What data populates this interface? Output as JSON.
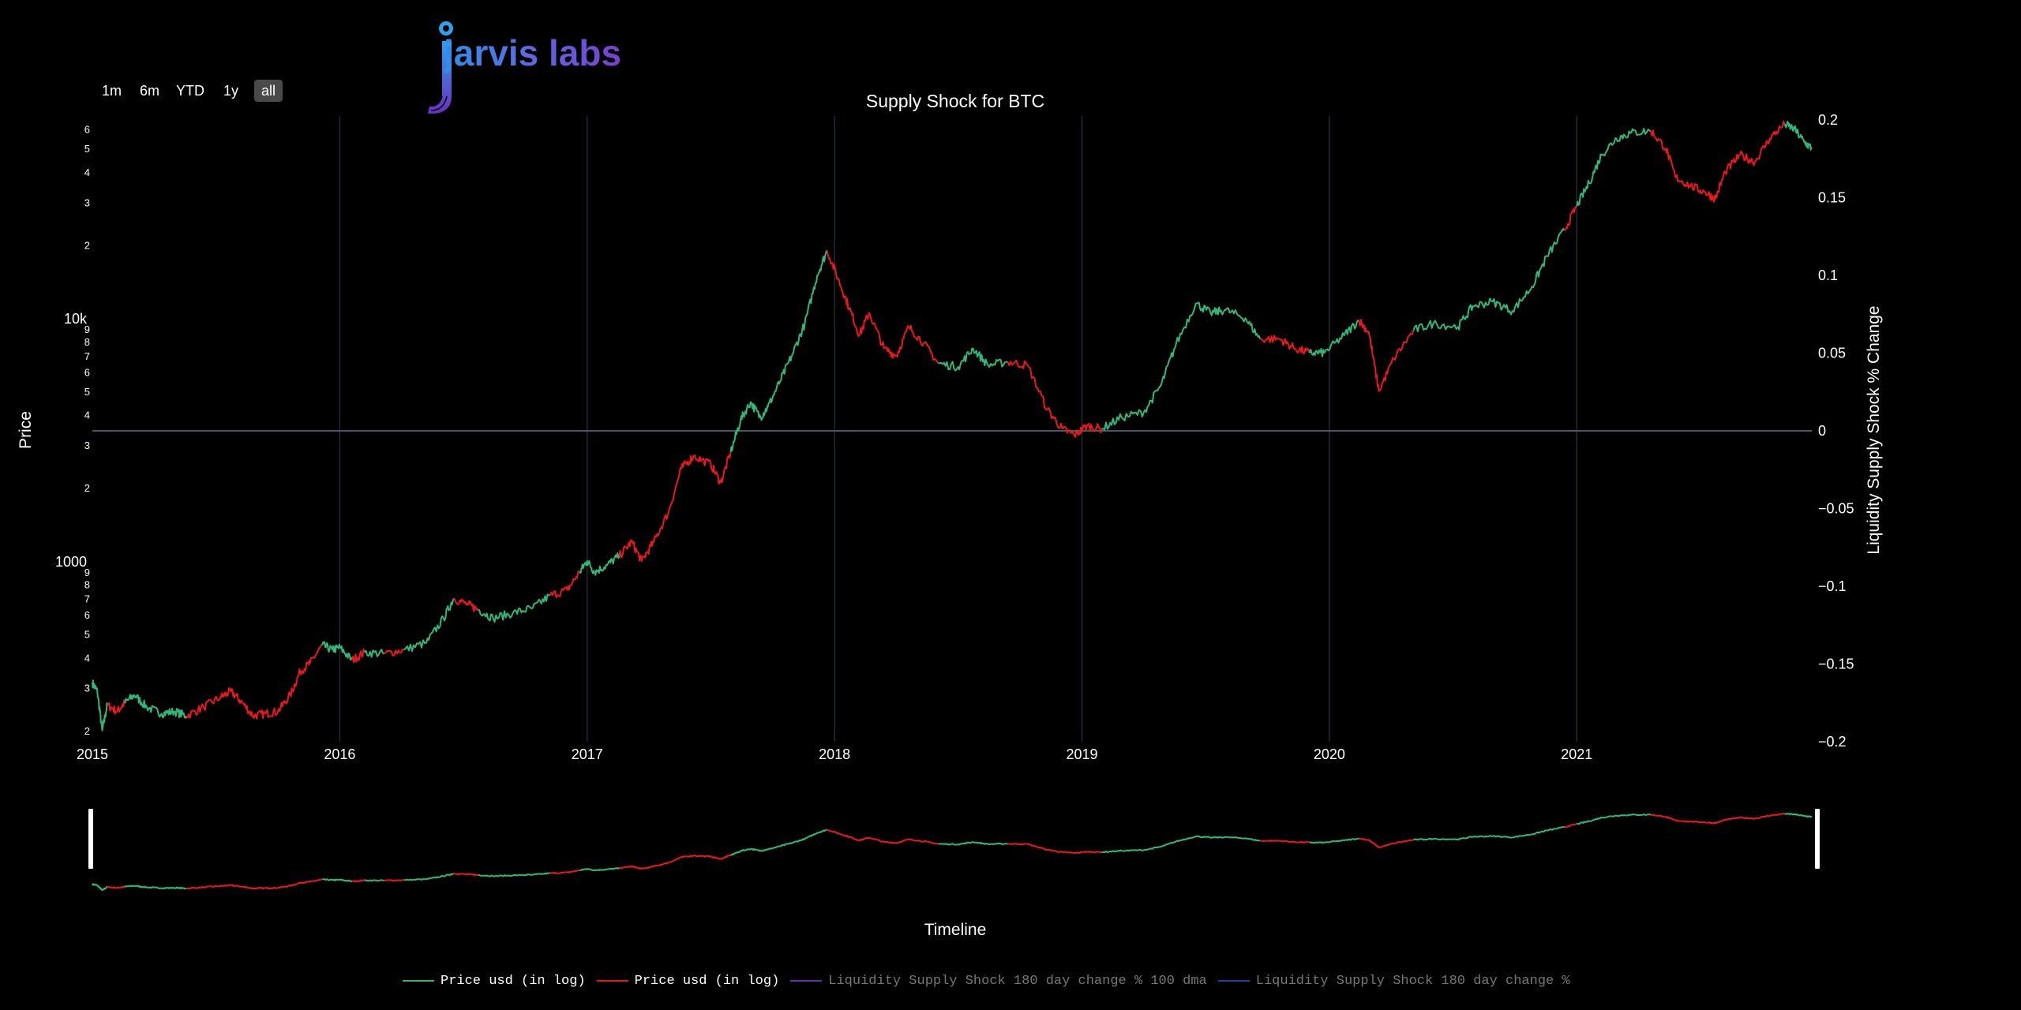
{
  "logo": {
    "text": "jarvis labs",
    "accent": "#2f8fe8",
    "accent2": "#7a3fd0"
  },
  "range_selector": {
    "buttons": [
      "1m",
      "6m",
      "YTD",
      "1y",
      "all"
    ],
    "active": "all"
  },
  "colors": {
    "up": "#2fb87a",
    "down": "#e8181b",
    "dma": "#6a2fb0",
    "lss": "#2a3d9c",
    "grid": "#2a2f3a",
    "zero_line": "#4a5670"
  },
  "chart_data": {
    "type": "line",
    "title": "Supply Shock for BTC",
    "xlabel": "Timeline",
    "ylabel_left": "Price",
    "ylabel_right": "Liquidity Supply Shock % Change",
    "x_ticks": [
      "2015",
      "2016",
      "2017",
      "2018",
      "2019",
      "2020",
      "2021"
    ],
    "y_left_scale": "log",
    "y_left_range": [
      180,
      68000
    ],
    "y_left_major_ticks": [
      {
        "value": 1000,
        "label": "1000"
      },
      {
        "value": 10000,
        "label": "10k"
      }
    ],
    "y_left_minor_ticks": [
      {
        "value": 200,
        "label": "2"
      },
      {
        "value": 300,
        "label": "3"
      },
      {
        "value": 400,
        "label": "4"
      },
      {
        "value": 500,
        "label": "5"
      },
      {
        "value": 600,
        "label": "6"
      },
      {
        "value": 700,
        "label": "7"
      },
      {
        "value": 800,
        "label": "8"
      },
      {
        "value": 900,
        "label": "9"
      },
      {
        "value": 2000,
        "label": "2"
      },
      {
        "value": 3000,
        "label": "3"
      },
      {
        "value": 4000,
        "label": "4"
      },
      {
        "value": 5000,
        "label": "5"
      },
      {
        "value": 6000,
        "label": "6"
      },
      {
        "value": 7000,
        "label": "7"
      },
      {
        "value": 8000,
        "label": "8"
      },
      {
        "value": 9000,
        "label": "9"
      },
      {
        "value": 20000,
        "label": "2"
      },
      {
        "value": 30000,
        "label": "3"
      },
      {
        "value": 40000,
        "label": "4"
      },
      {
        "value": 50000,
        "label": "5"
      },
      {
        "value": 60000,
        "label": "6"
      }
    ],
    "y_right_range": [
      -0.2,
      0.2
    ],
    "y_right_ticks": [
      {
        "value": 0.2,
        "label": "0.2"
      },
      {
        "value": 0.15,
        "label": "0.15"
      },
      {
        "value": 0.1,
        "label": "0.1"
      },
      {
        "value": 0.05,
        "label": "0.05"
      },
      {
        "value": 0,
        "label": "0"
      },
      {
        "value": -0.05,
        "label": "−0.05"
      },
      {
        "value": -0.1,
        "label": "−0.1"
      },
      {
        "value": -0.15,
        "label": "−0.15"
      },
      {
        "value": -0.2,
        "label": "−0.2"
      }
    ],
    "x_range": [
      2015.0,
      2021.95
    ],
    "grid": true,
    "legend_position": "bottom",
    "series": [
      {
        "name": "Price usd (in log)",
        "color_key": "up",
        "note": "colored green when supply shock rising"
      },
      {
        "name": "Price usd (in log)",
        "color_key": "down"
      },
      {
        "name": "Liquidity Supply Shock 180 day change % 100 dma",
        "color_key": "dma",
        "muted": true
      },
      {
        "name": "Liquidity Supply Shock 180 day change %",
        "color_key": "lss",
        "muted": true
      }
    ],
    "price_points": [
      [
        2015.0,
        315,
        "up"
      ],
      [
        2015.02,
        290,
        "up"
      ],
      [
        2015.04,
        200,
        "up"
      ],
      [
        2015.06,
        255,
        "down"
      ],
      [
        2015.1,
        240,
        "down"
      ],
      [
        2015.13,
        260,
        "up"
      ],
      [
        2015.17,
        280,
        "up"
      ],
      [
        2015.22,
        250,
        "up"
      ],
      [
        2015.28,
        235,
        "up"
      ],
      [
        2015.33,
        240,
        "up"
      ],
      [
        2015.38,
        230,
        "down"
      ],
      [
        2015.45,
        250,
        "down"
      ],
      [
        2015.52,
        275,
        "down"
      ],
      [
        2015.56,
        290,
        "down"
      ],
      [
        2015.6,
        265,
        "down"
      ],
      [
        2015.65,
        230,
        "down"
      ],
      [
        2015.7,
        235,
        "down"
      ],
      [
        2015.75,
        240,
        "down"
      ],
      [
        2015.8,
        280,
        "down"
      ],
      [
        2015.84,
        350,
        "down"
      ],
      [
        2015.88,
        380,
        "down"
      ],
      [
        2015.93,
        450,
        "up"
      ],
      [
        2015.97,
        430,
        "up"
      ],
      [
        2016.0,
        440,
        "up"
      ],
      [
        2016.05,
        390,
        "down"
      ],
      [
        2016.1,
        420,
        "up"
      ],
      [
        2016.18,
        415,
        "down"
      ],
      [
        2016.26,
        430,
        "up"
      ],
      [
        2016.35,
        460,
        "up"
      ],
      [
        2016.42,
        580,
        "up"
      ],
      [
        2016.46,
        700,
        "down"
      ],
      [
        2016.52,
        660,
        "down"
      ],
      [
        2016.56,
        630,
        "up"
      ],
      [
        2016.62,
        580,
        "up"
      ],
      [
        2016.7,
        610,
        "up"
      ],
      [
        2016.78,
        640,
        "up"
      ],
      [
        2016.85,
        720,
        "down"
      ],
      [
        2016.92,
        760,
        "down"
      ],
      [
        2016.97,
        900,
        "up"
      ],
      [
        2017.0,
        1000,
        "up"
      ],
      [
        2017.03,
        900,
        "up"
      ],
      [
        2017.08,
        960,
        "up"
      ],
      [
        2017.13,
        1050,
        "down"
      ],
      [
        2017.18,
        1200,
        "down"
      ],
      [
        2017.22,
        1000,
        "down"
      ],
      [
        2017.27,
        1200,
        "down"
      ],
      [
        2017.33,
        1600,
        "down"
      ],
      [
        2017.38,
        2400,
        "down"
      ],
      [
        2017.43,
        2700,
        "down"
      ],
      [
        2017.5,
        2500,
        "down"
      ],
      [
        2017.54,
        2100,
        "down"
      ],
      [
        2017.58,
        2800,
        "up"
      ],
      [
        2017.62,
        3800,
        "up"
      ],
      [
        2017.66,
        4500,
        "up"
      ],
      [
        2017.7,
        3900,
        "up"
      ],
      [
        2017.73,
        4300,
        "up"
      ],
      [
        2017.78,
        5500,
        "up"
      ],
      [
        2017.83,
        7100,
        "up"
      ],
      [
        2017.88,
        9500,
        "up"
      ],
      [
        2017.93,
        15000,
        "up"
      ],
      [
        2017.97,
        19000,
        "down"
      ],
      [
        2018.02,
        14000,
        "down"
      ],
      [
        2018.06,
        11000,
        "down"
      ],
      [
        2018.1,
        8500,
        "down"
      ],
      [
        2018.14,
        10500,
        "down"
      ],
      [
        2018.2,
        7500,
        "down"
      ],
      [
        2018.25,
        7000,
        "down"
      ],
      [
        2018.3,
        9200,
        "down"
      ],
      [
        2018.36,
        7900,
        "down"
      ],
      [
        2018.42,
        6500,
        "up"
      ],
      [
        2018.5,
        6300,
        "up"
      ],
      [
        2018.56,
        7500,
        "up"
      ],
      [
        2018.62,
        6400,
        "up"
      ],
      [
        2018.7,
        6600,
        "down"
      ],
      [
        2018.78,
        6400,
        "down"
      ],
      [
        2018.86,
        4200,
        "down"
      ],
      [
        2018.92,
        3500,
        "down"
      ],
      [
        2018.97,
        3300,
        "down"
      ],
      [
        2019.02,
        3600,
        "down"
      ],
      [
        2019.08,
        3500,
        "up"
      ],
      [
        2019.16,
        3900,
        "up"
      ],
      [
        2019.25,
        4100,
        "up"
      ],
      [
        2019.32,
        5300,
        "up"
      ],
      [
        2019.38,
        7800,
        "up"
      ],
      [
        2019.46,
        11500,
        "up"
      ],
      [
        2019.52,
        10500,
        "up"
      ],
      [
        2019.58,
        10800,
        "up"
      ],
      [
        2019.66,
        10000,
        "up"
      ],
      [
        2019.72,
        8200,
        "down"
      ],
      [
        2019.8,
        8200,
        "down"
      ],
      [
        2019.86,
        7500,
        "down"
      ],
      [
        2019.92,
        7200,
        "up"
      ],
      [
        2019.98,
        7200,
        "up"
      ],
      [
        2020.06,
        8500,
        "up"
      ],
      [
        2020.12,
        9800,
        "down"
      ],
      [
        2020.16,
        8700,
        "down"
      ],
      [
        2020.2,
        5000,
        "down"
      ],
      [
        2020.26,
        6800,
        "down"
      ],
      [
        2020.34,
        8900,
        "up"
      ],
      [
        2020.42,
        9500,
        "up"
      ],
      [
        2020.52,
        9200,
        "up"
      ],
      [
        2020.58,
        11200,
        "up"
      ],
      [
        2020.66,
        11700,
        "up"
      ],
      [
        2020.74,
        10700,
        "up"
      ],
      [
        2020.82,
        13500,
        "up"
      ],
      [
        2020.88,
        18000,
        "up"
      ],
      [
        2020.95,
        23000,
        "down"
      ],
      [
        2021.0,
        29000,
        "up"
      ],
      [
        2021.05,
        36000,
        "up"
      ],
      [
        2021.1,
        47000,
        "up"
      ],
      [
        2021.16,
        55000,
        "up"
      ],
      [
        2021.22,
        58000,
        "up"
      ],
      [
        2021.3,
        59000,
        "down"
      ],
      [
        2021.36,
        50000,
        "down"
      ],
      [
        2021.4,
        38000,
        "down"
      ],
      [
        2021.46,
        35000,
        "down"
      ],
      [
        2021.52,
        33000,
        "down"
      ],
      [
        2021.56,
        31000,
        "down"
      ],
      [
        2021.6,
        40000,
        "down"
      ],
      [
        2021.66,
        47000,
        "down"
      ],
      [
        2021.72,
        44000,
        "down"
      ],
      [
        2021.78,
        55000,
        "down"
      ],
      [
        2021.84,
        63000,
        "up"
      ],
      [
        2021.88,
        60000,
        "up"
      ],
      [
        2021.92,
        53000,
        "up"
      ],
      [
        2021.95,
        50000,
        "up"
      ]
    ]
  },
  "navigator": {
    "label": "Timeline"
  }
}
